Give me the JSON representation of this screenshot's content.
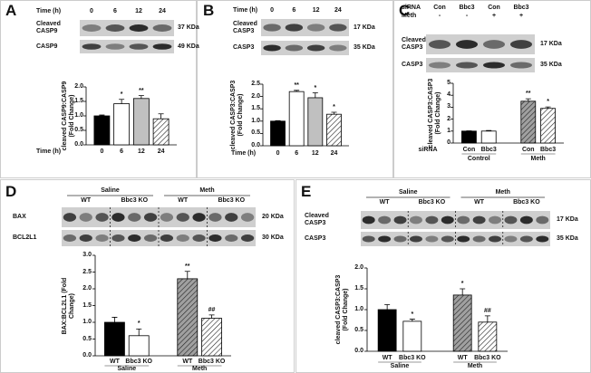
{
  "panels": [
    {
      "letter": "A",
      "blot": {
        "header": [
          {
            "label": "Time (h)",
            "lanes": [
              "0",
              "6",
              "12",
              "24"
            ]
          }
        ],
        "bands": [
          {
            "label": "Cleaved CASP9",
            "size": "37 KDa"
          },
          {
            "label": "CASP9",
            "size": "49 KDa"
          }
        ]
      },
      "chart": {
        "type": "bar",
        "ylabel": "cleaved CASP9:CASP9 (Fold Change)",
        "xlabel": "Time (h)",
        "categories": [
          "0",
          "6",
          "12",
          "24"
        ],
        "values": [
          1.0,
          1.42,
          1.6,
          0.9
        ],
        "errors": [
          0.03,
          0.15,
          0.1,
          0.17
        ],
        "annotations": [
          null,
          "*",
          "**",
          null
        ],
        "colors": [
          "#000000",
          "#ffffff",
          "#c0c0c0",
          "#ffffff"
        ],
        "hatch": [
          false,
          false,
          false,
          true
        ],
        "ylim": [
          0,
          2
        ],
        "yticks": [
          {
            "value": 0,
            "label": "0.0"
          },
          0.5,
          {
            "value": 1,
            "label": "1.0"
          },
          1.5,
          {
            "value": 2,
            "label": "2.0"
          }
        ]
      }
    },
    {
      "letter": "B",
      "blot": {
        "header": [
          {
            "label": "Time (h)",
            "lanes": [
              "0",
              "6",
              "12",
              "24"
            ]
          }
        ],
        "bands": [
          {
            "label": "Cleaved CASP3",
            "size": "17 KDa"
          },
          {
            "label": "CASP3",
            "size": "35 KDa"
          }
        ]
      },
      "chart": {
        "type": "bar",
        "ylabel": "cleaved CASP3:CASP3 (Fold Change)",
        "xlabel": "Time (h)",
        "categories": [
          "0",
          "6",
          "12",
          "24"
        ],
        "values": [
          1.0,
          2.2,
          1.95,
          1.28
        ],
        "errors": [
          0.02,
          0.05,
          0.2,
          0.08
        ],
        "annotations": [
          null,
          "**",
          "*",
          "*"
        ],
        "colors": [
          "#000000",
          "#ffffff",
          "#c0c0c0",
          "#ffffff"
        ],
        "hatch": [
          false,
          false,
          false,
          true
        ],
        "ylim": [
          0,
          2.5
        ],
        "yticks": [
          {
            "value": 0,
            "label": "0.0"
          },
          0.5,
          {
            "value": 1,
            "label": "1.0"
          },
          1.5,
          {
            "value": 2,
            "label": "2.0"
          },
          2.5
        ]
      }
    },
    {
      "letter": "C",
      "blot": {
        "header": [
          {
            "label": "siRNA",
            "lanes": [
              "Con",
              "Bbc3",
              "Con",
              "Bbc3"
            ]
          },
          {
            "label": "Meth",
            "lanes": [
              "-",
              "-",
              "+",
              "+"
            ]
          }
        ],
        "bands": [
          {
            "label": "Cleaved CASP3",
            "size": "17 KDa"
          },
          {
            "label": "CASP3",
            "size": "35 KDa"
          }
        ]
      },
      "chart": {
        "type": "bar",
        "ylabel": "cleaved CASP3:CASP3 (Fold Change)",
        "category_title": "siRNA",
        "categories": [
          "Con",
          "Bbc3",
          "Con",
          "Bbc3"
        ],
        "groups": [
          "Control",
          "Meth"
        ],
        "values": [
          1.0,
          1.0,
          3.5,
          2.9
        ],
        "errors": [
          0.02,
          0.05,
          0.2,
          0.12
        ],
        "annotations": [
          null,
          null,
          "**",
          "*"
        ],
        "colors": [
          "#000000",
          "#ffffff",
          "#a0a0a0",
          "#ffffff"
        ],
        "hatch": [
          false,
          false,
          true,
          true
        ],
        "ylim": [
          0,
          5
        ],
        "yticks": [
          0,
          1,
          2,
          3,
          4,
          5
        ]
      }
    },
    {
      "letter": "D",
      "blot": {
        "header": [
          {
            "lanes": [
              "Saline",
              "Meth"
            ]
          },
          {
            "lanes": [
              "WT",
              "Bbc3 KO",
              "WT",
              "Bbc3 KO"
            ]
          }
        ],
        "bands": [
          {
            "label": "BAX",
            "size": "20 KDa"
          },
          {
            "label": "BCL2L1",
            "size": "30 KDa"
          }
        ]
      },
      "chart": {
        "type": "bar",
        "ylabel": "BAX:BCL2L1 (Fold Change)",
        "categories": [
          "WT",
          "Bbc3 KO",
          "WT",
          "Bbc3 KO"
        ],
        "groups": [
          "Saline",
          "Meth"
        ],
        "values": [
          1.0,
          0.6,
          2.3,
          1.12
        ],
        "errors": [
          0.15,
          0.2,
          0.22,
          0.1
        ],
        "annotations": [
          null,
          "*",
          "**",
          "##"
        ],
        "colors": [
          "#000000",
          "#ffffff",
          "#a0a0a0",
          "#ffffff"
        ],
        "hatch": [
          false,
          false,
          true,
          true
        ],
        "ylim": [
          0,
          3
        ],
        "yticks": [
          {
            "value": 0,
            "label": "0.0"
          },
          0.5,
          {
            "value": 1,
            "label": "1.0"
          },
          1.5,
          {
            "value": 2,
            "label": "2.0"
          },
          2.5,
          {
            "value": 3,
            "label": "3.0"
          }
        ]
      }
    },
    {
      "letter": "E",
      "blot": {
        "header": [
          {
            "lanes": [
              "Saline",
              "Meth"
            ]
          },
          {
            "lanes": [
              "WT",
              "Bbc3 KO",
              "WT",
              "Bbc3 KO"
            ]
          }
        ],
        "bands": [
          {
            "label": "Cleaved CASP3",
            "size": "17 KDa"
          },
          {
            "label": "CASP3",
            "size": "35 KDa"
          }
        ]
      },
      "chart": {
        "type": "bar",
        "ylabel": "cleaved CASP3:CASP3 (Fold Change)",
        "categories": [
          "WT",
          "Bbc3 KO",
          "WT",
          "Bbc3 KO"
        ],
        "groups": [
          "Saline",
          "Meth"
        ],
        "values": [
          1.0,
          0.72,
          1.35,
          0.7
        ],
        "errors": [
          0.12,
          0.05,
          0.15,
          0.15
        ],
        "annotations": [
          null,
          "*",
          "*",
          "##"
        ],
        "colors": [
          "#000000",
          "#ffffff",
          "#a0a0a0",
          "#ffffff"
        ],
        "hatch": [
          false,
          false,
          true,
          true
        ],
        "ylim": [
          0,
          2
        ],
        "yticks": [
          {
            "value": 0,
            "label": "0.0"
          },
          0.5,
          {
            "value": 1,
            "label": "1.0"
          },
          1.5,
          {
            "value": 2,
            "label": "2.0"
          }
        ]
      }
    }
  ]
}
